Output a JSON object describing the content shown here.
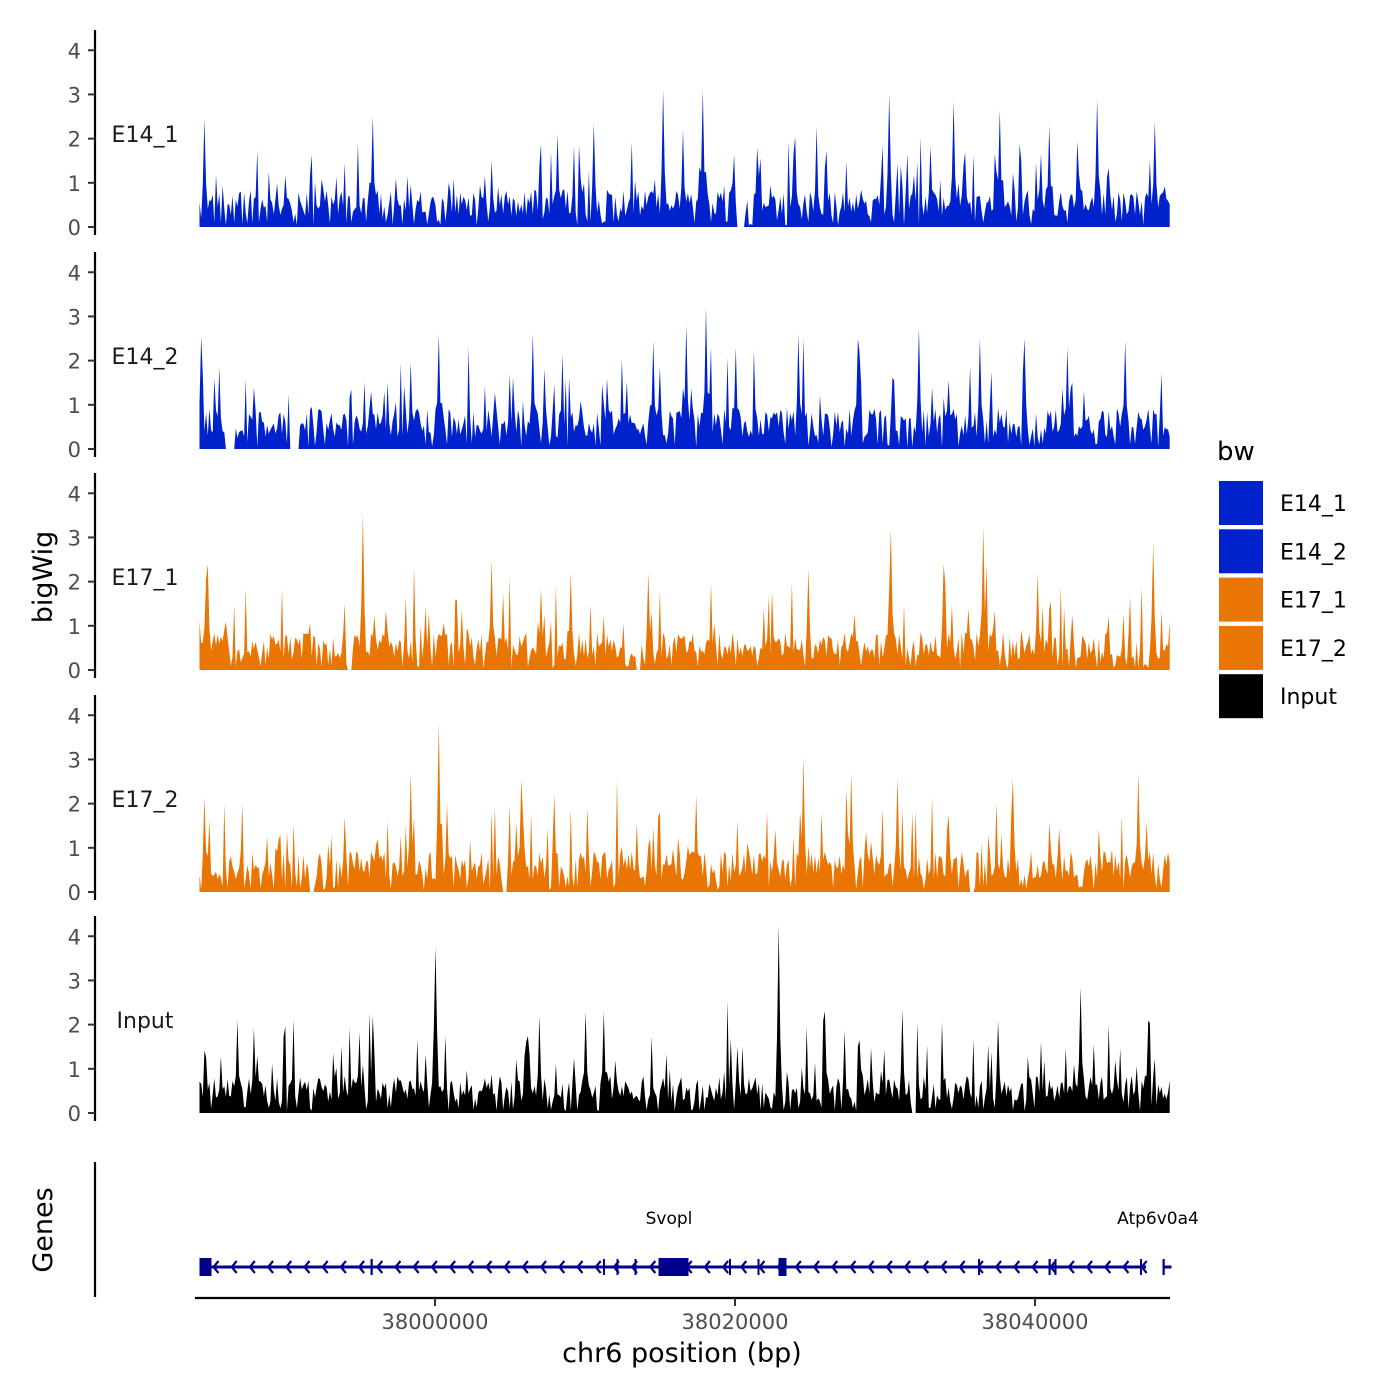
{
  "chart_data": {
    "type": "area",
    "ylabel": "bigWig",
    "genes_label": "Genes",
    "xlabel": "chr6 position (bp)",
    "x_range": [
      37984000,
      38049000
    ],
    "x_ticks": [
      38000000,
      38020000,
      38040000
    ],
    "x_tick_labels": [
      "38000000",
      "38020000",
      "38040000"
    ],
    "ylim": [
      0,
      4.3
    ],
    "y_ticks": [
      0,
      1,
      2,
      3,
      4
    ],
    "y_tick_labels": [
      "0",
      "1",
      "2",
      "3",
      "4"
    ],
    "legend": {
      "title": "bw",
      "position": "right",
      "entries": [
        {
          "label": "E14_1",
          "color": "#0022cc"
        },
        {
          "label": "E14_2",
          "color": "#0022cc"
        },
        {
          "label": "E17_1",
          "color": "#e87504"
        },
        {
          "label": "E17_2",
          "color": "#e87504"
        },
        {
          "label": "Input",
          "color": "#000000"
        }
      ]
    },
    "tracks": [
      {
        "name": "E14_1",
        "label": "E14_1",
        "color": "#0022cc",
        "seed": 11,
        "base": 0.55,
        "gaps": [
          [
            38020100,
            38020600
          ]
        ],
        "peaks": [
          [
            37984600,
            2.45
          ],
          [
            37995800,
            2.5
          ],
          [
            38008200,
            2.1
          ],
          [
            38010600,
            2.35
          ],
          [
            38015200,
            3.1
          ],
          [
            38016500,
            2.2
          ],
          [
            38017900,
            3.1
          ],
          [
            38021500,
            1.8
          ],
          [
            38030300,
            3.0
          ],
          [
            38034600,
            2.85
          ],
          [
            38037700,
            2.65
          ],
          [
            38041000,
            2.3
          ],
          [
            38044100,
            2.9
          ],
          [
            38048000,
            2.4
          ]
        ]
      },
      {
        "name": "E14_2",
        "label": "E14_2",
        "color": "#0022cc",
        "seed": 23,
        "base": 0.6,
        "gaps": [
          [
            37986000,
            37986700
          ],
          [
            37990300,
            37990900
          ]
        ],
        "peaks": [
          [
            37984400,
            2.55
          ],
          [
            38000300,
            2.6
          ],
          [
            38006500,
            2.6
          ],
          [
            38014500,
            2.45
          ],
          [
            38016700,
            2.8
          ],
          [
            38018100,
            3.2
          ],
          [
            38020000,
            2.3
          ],
          [
            38024200,
            2.6
          ],
          [
            38028200,
            2.5
          ],
          [
            38032300,
            2.75
          ],
          [
            38036300,
            2.5
          ],
          [
            38039300,
            2.5
          ],
          [
            38042200,
            2.3
          ],
          [
            38046000,
            2.45
          ]
        ]
      },
      {
        "name": "E17_1",
        "label": "E17_1",
        "color": "#e87504",
        "seed": 37,
        "base": 0.55,
        "gaps": [
          [
            37994200,
            37994500
          ],
          [
            38013400,
            38013700
          ]
        ],
        "peaks": [
          [
            37984800,
            2.4
          ],
          [
            37995200,
            3.55
          ],
          [
            38003800,
            2.5
          ],
          [
            38009000,
            2.2
          ],
          [
            38014200,
            2.2
          ],
          [
            38024900,
            2.3
          ],
          [
            38030400,
            3.2
          ],
          [
            38033900,
            2.4
          ],
          [
            38036600,
            3.25
          ],
          [
            38040200,
            2.2
          ],
          [
            38047900,
            2.9
          ]
        ]
      },
      {
        "name": "E17_2",
        "label": "E17_2",
        "color": "#e87504",
        "seed": 53,
        "base": 0.6,
        "gaps": [
          [
            37991600,
            37991900
          ],
          [
            38004500,
            38004800
          ],
          [
            38035600,
            38035900
          ]
        ],
        "peaks": [
          [
            37984600,
            2.15
          ],
          [
            37998400,
            2.7
          ],
          [
            38000300,
            3.85
          ],
          [
            38005800,
            2.55
          ],
          [
            38008000,
            2.2
          ],
          [
            38017400,
            2.2
          ],
          [
            38024600,
            3.05
          ],
          [
            38027700,
            2.7
          ],
          [
            38030800,
            2.6
          ],
          [
            38038500,
            2.55
          ],
          [
            38046900,
            2.7
          ]
        ]
      },
      {
        "name": "Input",
        "label": "Input",
        "color": "#000000",
        "seed": 71,
        "base": 0.55,
        "gaps": [
          [
            38031800,
            38032100
          ]
        ],
        "peaks": [
          [
            37986800,
            2.1
          ],
          [
            37995800,
            2.2
          ],
          [
            38000000,
            3.75
          ],
          [
            38007000,
            2.2
          ],
          [
            38010000,
            2.3
          ],
          [
            38011300,
            2.3
          ],
          [
            38022900,
            4.25
          ],
          [
            38026000,
            2.3
          ],
          [
            38031200,
            2.35
          ],
          [
            38037500,
            2.1
          ],
          [
            38043000,
            2.85
          ],
          [
            38047500,
            2.1
          ]
        ]
      }
    ],
    "genes": {
      "strand": "-",
      "color": "#00008b",
      "names": [
        {
          "name": "Svopl",
          "x": 38015600
        },
        {
          "name": "Atp6v0a4",
          "x": 38048200
        }
      ],
      "segments": [
        [
          37984300,
          38047400
        ],
        [
          38048500,
          38049100
        ]
      ],
      "exons": [
        {
          "start": 37984300,
          "end": 37985100,
          "thick": true
        },
        {
          "start": 37995700,
          "end": 37995850,
          "thick": false
        },
        {
          "start": 38011200,
          "end": 38011330,
          "thick": false
        },
        {
          "start": 38012100,
          "end": 38012230,
          "thick": false
        },
        {
          "start": 38013300,
          "end": 38013420,
          "thick": false
        },
        {
          "start": 38014900,
          "end": 38016900,
          "thick": true
        },
        {
          "start": 38019600,
          "end": 38019720,
          "thick": false
        },
        {
          "start": 38021500,
          "end": 38021600,
          "thick": false
        },
        {
          "start": 38022900,
          "end": 38023200,
          "thick": true
        },
        {
          "start": 38036200,
          "end": 38036330,
          "thick": false
        },
        {
          "start": 38040900,
          "end": 38041050,
          "thick": false
        },
        {
          "start": 38041300,
          "end": 38041420,
          "thick": false
        },
        {
          "start": 38047000,
          "end": 38047130,
          "thick": false
        },
        {
          "start": 38048500,
          "end": 38048650,
          "thick": false
        }
      ]
    }
  }
}
